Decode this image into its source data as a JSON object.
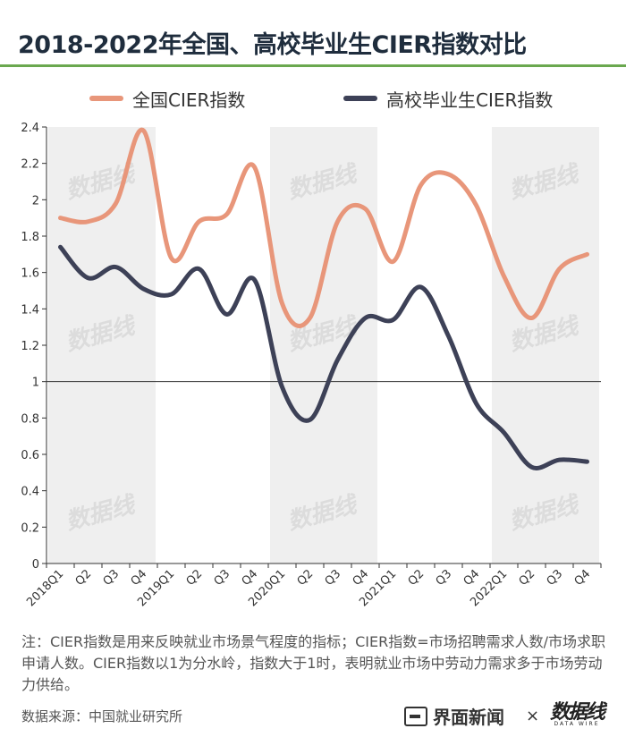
{
  "title": "2018-2022年全国、高校毕业生CIER指数对比",
  "legend": {
    "national": "全国CIER指数",
    "graduates": "高校毕业生CIER指数"
  },
  "chart_data": {
    "type": "line",
    "categories": [
      "2018Q1",
      "Q2",
      "Q3",
      "Q4",
      "2019Q1",
      "Q2",
      "Q3",
      "Q4",
      "2020Q1",
      "Q2",
      "Q3",
      "Q4",
      "2021Q1",
      "Q2",
      "Q3",
      "Q4",
      "2022Q1",
      "Q2",
      "Q3",
      "Q4"
    ],
    "series": [
      {
        "name": "全国CIER指数",
        "color": "#e8967a",
        "values": [
          1.9,
          1.88,
          1.98,
          2.38,
          1.68,
          1.88,
          1.92,
          2.18,
          1.43,
          1.35,
          1.88,
          1.95,
          1.66,
          2.08,
          2.14,
          1.97,
          1.58,
          1.35,
          1.62,
          1.7
        ]
      },
      {
        "name": "高校毕业生CIER指数",
        "color": "#3d4157",
        "values": [
          1.74,
          1.57,
          1.63,
          1.51,
          1.48,
          1.62,
          1.37,
          1.56,
          0.97,
          0.79,
          1.12,
          1.35,
          1.34,
          1.52,
          1.25,
          0.88,
          0.72,
          0.53,
          0.57,
          0.56
        ]
      }
    ],
    "ylim": [
      0,
      2.4
    ],
    "yticks": [
      "0",
      "0.2",
      "0.4",
      "0.6",
      "0.8",
      "1",
      "1.2",
      "1.4",
      "1.6",
      "1.8",
      "2",
      "2.2",
      "2.4"
    ],
    "reference_line": 1,
    "watermark": "数据线"
  },
  "note": "注：CIER指数是用来反映就业市场景气程度的指标；CIER指数=市场招聘需求人数/市场求职申请人数。CIER指数以1为分水岭，指数大于1时，表明就业市场中劳动力需求多于市场劳动力供给。",
  "source": "数据来源：中国就业研究所",
  "brand": {
    "name": "界面新闻",
    "times": "×",
    "partner": "数据线",
    "partner_sub": "DATA WIRE"
  }
}
